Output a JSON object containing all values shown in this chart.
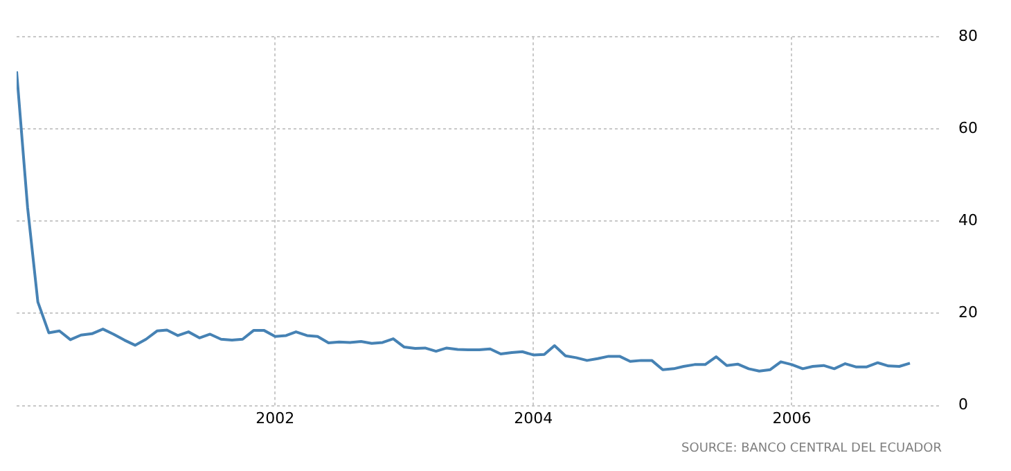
{
  "chart_data": {
    "type": "line",
    "x": [
      "2000-01",
      "2000-02",
      "2000-03",
      "2000-04",
      "2000-05",
      "2000-06",
      "2000-07",
      "2000-08",
      "2000-09",
      "2000-10",
      "2000-11",
      "2000-12",
      "2001-01",
      "2001-02",
      "2001-03",
      "2001-04",
      "2001-05",
      "2001-06",
      "2001-07",
      "2001-08",
      "2001-09",
      "2001-10",
      "2001-11",
      "2001-12",
      "2002-01",
      "2002-02",
      "2002-03",
      "2002-04",
      "2002-05",
      "2002-06",
      "2002-07",
      "2002-08",
      "2002-09",
      "2002-10",
      "2002-11",
      "2002-12",
      "2003-01",
      "2003-02",
      "2003-03",
      "2003-04",
      "2003-05",
      "2003-06",
      "2003-07",
      "2003-08",
      "2003-09",
      "2003-10",
      "2003-11",
      "2003-12",
      "2004-01",
      "2004-02",
      "2004-03",
      "2004-04",
      "2004-05",
      "2004-06",
      "2004-07",
      "2004-08",
      "2004-09",
      "2004-10",
      "2004-11",
      "2004-12",
      "2005-01",
      "2005-02",
      "2005-03",
      "2005-04",
      "2005-05",
      "2005-06",
      "2005-07",
      "2005-08",
      "2005-09",
      "2005-10",
      "2005-11",
      "2005-12",
      "2006-01",
      "2006-02",
      "2006-03",
      "2006-04",
      "2006-05",
      "2006-06",
      "2006-07",
      "2006-08",
      "2006-09",
      "2006-10",
      "2006-11",
      "2006-12"
    ],
    "series": [
      {
        "color": "#4682b4",
        "values": [
          72.5,
          43,
          22.5,
          15.8,
          16.2,
          14.3,
          15.3,
          15.6,
          16.6,
          15.5,
          14.2,
          13.1,
          14.4,
          16.2,
          16.4,
          15.2,
          16.0,
          14.7,
          15.5,
          14.4,
          14.2,
          14.4,
          16.3,
          16.3,
          15.0,
          15.2,
          16.0,
          15.2,
          15.0,
          13.6,
          13.8,
          13.7,
          13.9,
          13.5,
          13.7,
          14.5,
          12.7,
          12.4,
          12.5,
          11.8,
          12.5,
          12.2,
          12.1,
          12.1,
          12.3,
          11.2,
          11.5,
          11.7,
          11.0,
          11.1,
          13.0,
          10.8,
          10.4,
          9.8,
          10.2,
          10.7,
          10.7,
          9.6,
          9.8,
          9.8,
          7.8,
          8.0,
          8.5,
          8.9,
          8.9,
          10.6,
          8.7,
          9.0,
          8.0,
          7.5,
          7.8,
          9.5,
          8.9,
          8.0,
          8.5,
          8.7,
          8.0,
          9.1,
          8.4,
          8.4,
          9.3,
          8.6,
          8.5,
          9.2
        ]
      }
    ],
    "xlim": [
      "2000-01",
      "2007-03"
    ],
    "xticks": [
      {
        "value": "2002",
        "label": "2002"
      },
      {
        "value": "2004",
        "label": "2004"
      },
      {
        "value": "2006",
        "label": "2006"
      }
    ],
    "ylim": [
      0,
      80
    ],
    "yticks": [
      0,
      20,
      40,
      60,
      80
    ],
    "grid": true,
    "legend": false,
    "marker": "none",
    "line_style": "solid",
    "annotations": [
      "SOURCE: BANCO CENTRAL DEL ECUADOR"
    ]
  }
}
